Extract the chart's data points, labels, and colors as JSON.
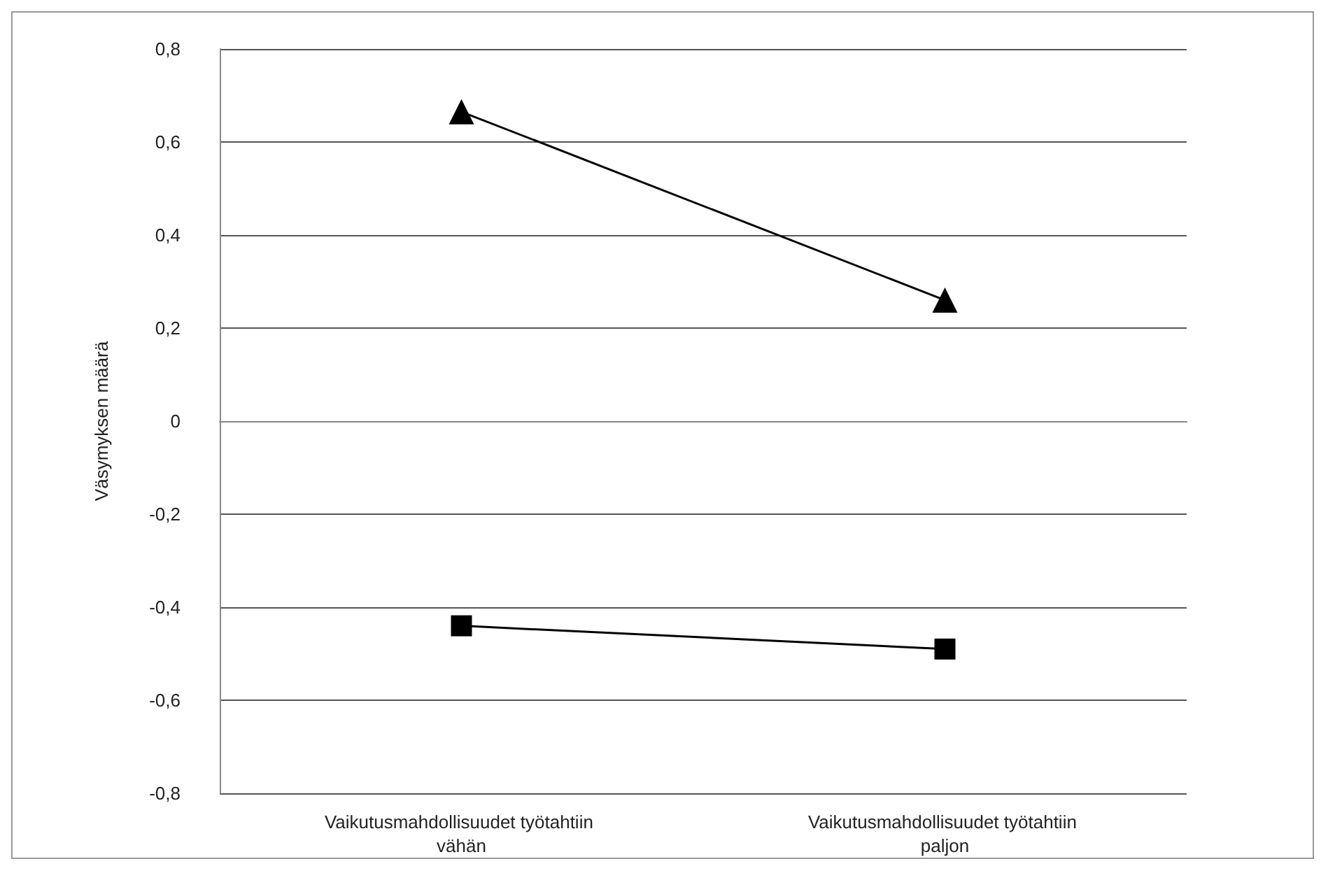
{
  "chart_data": {
    "type": "line",
    "ylabel": "Väsymyksen määrä",
    "categories": [
      "Vaikutusmahdollisuudet työtahtiin vähän",
      "Vaikutusmahdollisuudet työtahtiin paljon"
    ],
    "series": [
      {
        "color": "#000000",
        "marker": "triangle",
        "values": [
          0.665,
          0.26
        ]
      },
      {
        "color": "#000000",
        "marker": "square",
        "values": [
          -0.44,
          -0.49
        ]
      }
    ],
    "ylim": [
      -0.8,
      0.8
    ],
    "yticks": [
      {
        "value": -0.8,
        "label": "-0,8"
      },
      {
        "value": -0.6,
        "label": "-0,6"
      },
      {
        "value": -0.4,
        "label": "-0,4"
      },
      {
        "value": -0.2,
        "label": "-0,2"
      },
      0,
      {
        "value": 0.2,
        "label": "0,2"
      },
      {
        "value": 0.4,
        "label": "0,4"
      },
      {
        "value": 0.6,
        "label": "0,6"
      },
      {
        "value": 0.8,
        "label": "0,8"
      }
    ],
    "grid": "y",
    "line_style": "solid"
  }
}
